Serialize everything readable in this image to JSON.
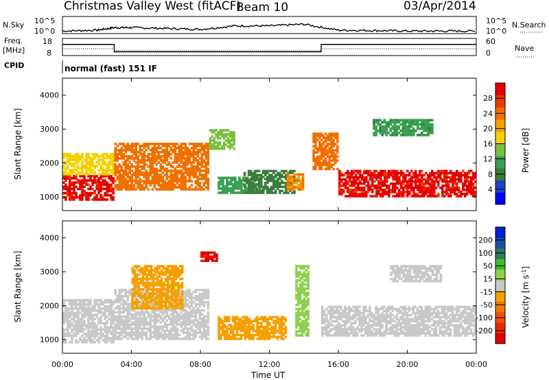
{
  "header": {
    "title": "Christmas Valley West (fitACF)",
    "beam": "Beam 10",
    "date": "03/Apr/2014"
  },
  "side_labels": {
    "nsky": "N.Sky",
    "freq": "Freq.",
    "freq_unit": "[MHz]",
    "cpid": "CPID",
    "nsearch": "N.Search",
    "nave": "Nave"
  },
  "cpid_text": "normal (fast) 151 IF",
  "colors": {
    "power_scale": [
      "#0000ff",
      "#2040c8",
      "#3c7c3c",
      "#3aa052",
      "#7bbf42",
      "#f7d000",
      "#f6a000",
      "#f07000",
      "#ec3a00",
      "#e60000"
    ],
    "velocity_scale": [
      "#0022cc",
      "#1f4fa0",
      "#2e7d5a",
      "#3dbb2d",
      "#8fd14f",
      "#c9c9c9",
      "#f5a000",
      "#f07a00",
      "#ec5000",
      "#e62a00",
      "#e00000"
    ]
  },
  "chart_data": [
    {
      "type": "line",
      "name": "noise-panel",
      "left_ticks": [
        "10^5",
        "10^0"
      ],
      "right_ticks": [
        "10^5",
        "10^0"
      ],
      "x": [
        "00:00",
        "02:00",
        "03:00",
        "04:00",
        "06:00",
        "08:00",
        "10:00",
        "12:00",
        "14:00",
        "16:00",
        "18:00",
        "20:00",
        "22:00",
        "24:00"
      ],
      "series": [
        {
          "name": "N.Sky",
          "values": [
            0.15,
            0.2,
            0.35,
            0.35,
            0.3,
            0.25,
            0.45,
            0.45,
            0.55,
            0.2,
            0.18,
            0.15,
            0.15,
            0.15
          ]
        }
      ]
    },
    {
      "type": "line",
      "name": "freq-nave-panel",
      "left_ticks": [
        "18",
        "8"
      ],
      "right_ticks": [
        "60",
        "0"
      ],
      "x": [
        "00:00",
        "03:00",
        "03:01",
        "15:00",
        "15:01",
        "24:00"
      ],
      "series": [
        {
          "name": "Freq.",
          "values": [
            14.5,
            14.5,
            10.2,
            10.2,
            14.5,
            14.5
          ]
        },
        {
          "name": "Nave",
          "values": [
            24,
            24,
            17,
            17,
            24,
            24
          ]
        }
      ]
    },
    {
      "type": "heatmap",
      "name": "power-panel",
      "ylabel": "Slant Range [km]",
      "y_ticks": [
        "1000",
        "2000",
        "3000",
        "4000"
      ],
      "ylim": [
        600,
        4500
      ],
      "xlim": [
        0,
        24
      ],
      "colorbar_label": "Power [dB]",
      "colorbar_ticks": [
        "4",
        "8",
        "12",
        "16",
        "20",
        "24",
        "28"
      ],
      "regions": [
        {
          "x0": 0,
          "x1": 3,
          "y0": 900,
          "y1": 1650,
          "value": 29
        },
        {
          "x0": 0,
          "x1": 3,
          "y0": 1650,
          "y1": 2300,
          "value": 16
        },
        {
          "x0": 3,
          "x1": 8.5,
          "y0": 1200,
          "y1": 2600,
          "value": 24
        },
        {
          "x0": 8.5,
          "x1": 10,
          "y0": 2400,
          "y1": 3000,
          "value": 13
        },
        {
          "x0": 9,
          "x1": 11.5,
          "y0": 1100,
          "y1": 1600,
          "value": 10
        },
        {
          "x0": 10.5,
          "x1": 13.5,
          "y0": 1100,
          "y1": 1800,
          "value": 6
        },
        {
          "x0": 13,
          "x1": 14,
          "y0": 1200,
          "y1": 1700,
          "value": 22
        },
        {
          "x0": 14.5,
          "x1": 16,
          "y0": 1800,
          "y1": 2900,
          "value": 24
        },
        {
          "x0": 16,
          "x1": 24,
          "y0": 1000,
          "y1": 1800,
          "value": 29
        },
        {
          "x0": 18,
          "x1": 21.5,
          "y0": 2800,
          "y1": 3300,
          "value": 9
        }
      ]
    },
    {
      "type": "heatmap",
      "name": "velocity-panel",
      "ylabel": "Slant Range [km]",
      "y_ticks": [
        "1000",
        "2000",
        "3000",
        "4000"
      ],
      "ylim": [
        600,
        4500
      ],
      "xlim": [
        0,
        24
      ],
      "colorbar_label": "Velocity [m s",
      "colorbar_label_sup": "-1",
      "colorbar_label_end": "]",
      "colorbar_ticks": [
        "-200",
        "-100",
        "-50",
        "-15",
        "15",
        "50",
        "100",
        "200"
      ],
      "regions": [
        {
          "x0": 0,
          "x1": 3,
          "y0": 900,
          "y1": 2200,
          "value": 0
        },
        {
          "x0": 3,
          "x1": 8.5,
          "y0": 1000,
          "y1": 2500,
          "value": 0
        },
        {
          "x0": 4,
          "x1": 7,
          "y0": 1900,
          "y1": 3200,
          "value": -60
        },
        {
          "x0": 8,
          "x1": 9,
          "y0": 3300,
          "y1": 3600,
          "value": -230
        },
        {
          "x0": 9,
          "x1": 13,
          "y0": 1000,
          "y1": 1700,
          "value": -60
        },
        {
          "x0": 13.5,
          "x1": 14.3,
          "y0": 1100,
          "y1": 3200,
          "value": 50
        },
        {
          "x0": 15,
          "x1": 24,
          "y0": 1100,
          "y1": 2000,
          "value": 0
        },
        {
          "x0": 19,
          "x1": 22,
          "y0": 2700,
          "y1": 3200,
          "value": -15
        }
      ]
    }
  ],
  "xaxis": {
    "ticks": [
      "00:00",
      "04:00",
      "08:00",
      "12:00",
      "16:00",
      "20:00",
      "00:00"
    ],
    "label": "Time UT"
  }
}
